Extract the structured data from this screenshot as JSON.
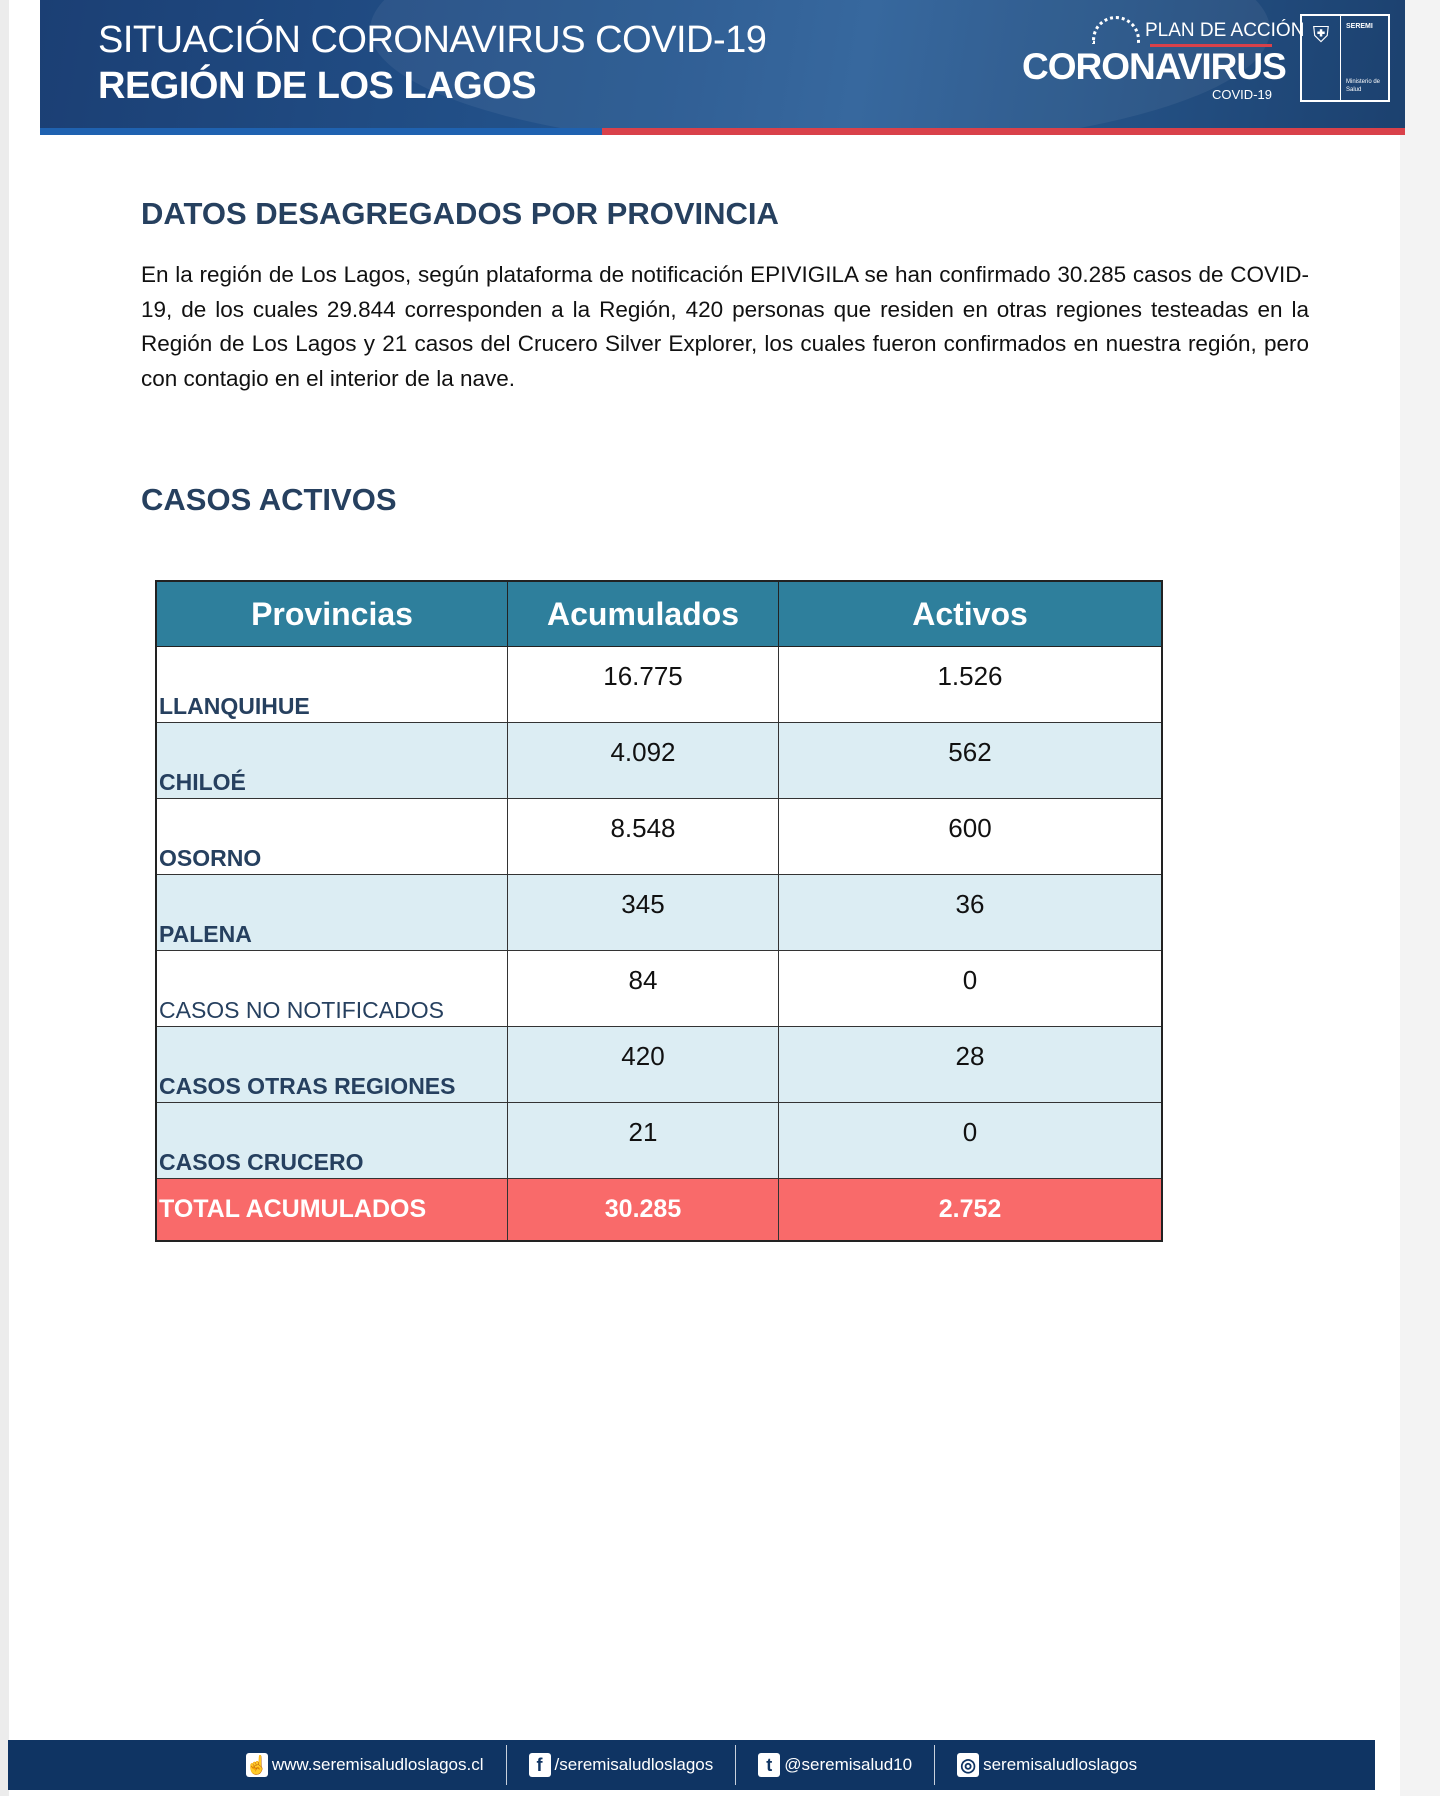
{
  "header": {
    "title_line1": "SITUACIÓN CORONAVIRUS COVID-19",
    "title_line2": "REGIÓN DE LOS LAGOS",
    "plan_label": "PLAN DE ACCIÓN",
    "corona_label": "CORONAVIRUS",
    "covid_label": "COVID-19",
    "seremi_label": "SEREMI",
    "ministry_label": "Ministerio de Salud",
    "colors": {
      "blue": "#1f62b0",
      "red": "#d9414a",
      "navy": "#1b3f74"
    }
  },
  "section1": {
    "heading": "DATOS DESAGREGADOS POR PROVINCIA",
    "paragraph": "En la región de Los Lagos, según plataforma de notificación EPIVIGILA se han confirmado 30.285 casos de COVID-19, de los cuales 29.844 corresponden a la Región, 420 personas que residen en otras regiones testeadas en la Región de Los Lagos y 21 casos del Crucero Silver Explorer, los cuales fueron confirmados en nuestra región, pero con contagio en el interior de la nave."
  },
  "section2": {
    "heading": "CASOS ACTIVOS",
    "table": {
      "headers": [
        "Provincias",
        "Acumulados",
        "Activos"
      ],
      "rows": [
        [
          "LLANQUIHUE",
          "16.775",
          "1.526"
        ],
        [
          "CHILOÉ",
          "4.092",
          "562"
        ],
        [
          "OSORNO",
          "8.548",
          "600"
        ],
        [
          "PALENA",
          "345",
          "36"
        ],
        [
          "CASOS NO NOTIFICADOS",
          "84",
          "0"
        ],
        [
          "CASOS OTRAS REGIONES",
          "420",
          "28"
        ],
        [
          "CASOS CRUCERO",
          "21",
          "0"
        ]
      ],
      "total": [
        "TOTAL ACUMULADOS",
        "30.285",
        "2.752"
      ]
    }
  },
  "footer": {
    "items": [
      {
        "icon": "hand-pointer-icon",
        "glyph": "☝",
        "label": "www.seremisaludloslagos.cl"
      },
      {
        "icon": "facebook-icon",
        "glyph": "f",
        "label": "/seremisaludloslagos"
      },
      {
        "icon": "tumblr-icon",
        "glyph": "t",
        "label": "@seremisalud10"
      },
      {
        "icon": "instagram-icon",
        "glyph": "◎",
        "label": "seremisaludloslagos"
      }
    ]
  }
}
